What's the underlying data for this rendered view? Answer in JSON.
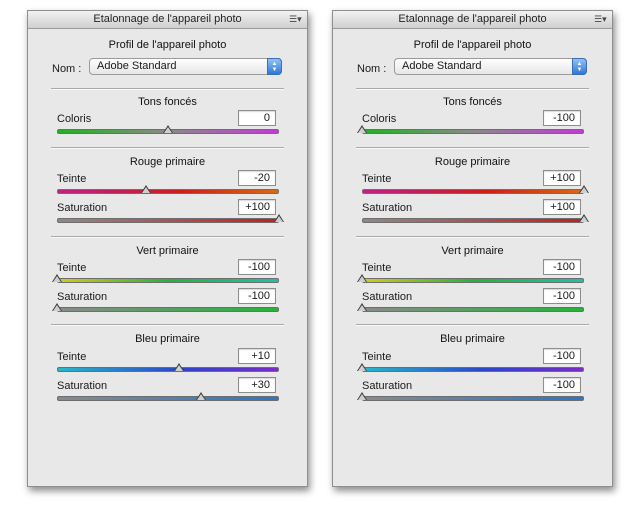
{
  "panels": [
    {
      "title": "Etalonnage de l'appareil photo",
      "profile_heading": "Profil de l'appareil photo",
      "nom_label": "Nom :",
      "profile_value": "Adobe Standard",
      "shadows": {
        "heading": "Tons foncés",
        "coloris_label": "Coloris",
        "coloris_value": "0"
      },
      "red": {
        "heading": "Rouge primaire",
        "teinte_label": "Teinte",
        "teinte_value": "-20",
        "saturation_label": "Saturation",
        "saturation_value": "+100"
      },
      "green": {
        "heading": "Vert primaire",
        "teinte_label": "Teinte",
        "teinte_value": "-100",
        "saturation_label": "Saturation",
        "saturation_value": "-100"
      },
      "blue": {
        "heading": "Bleu primaire",
        "teinte_label": "Teinte",
        "teinte_value": "+10",
        "saturation_label": "Saturation",
        "saturation_value": "+30"
      }
    },
    {
      "title": "Etalonnage de l'appareil photo",
      "profile_heading": "Profil de l'appareil photo",
      "nom_label": "Nom :",
      "profile_value": "Adobe Standard",
      "shadows": {
        "heading": "Tons foncés",
        "coloris_label": "Coloris",
        "coloris_value": "-100"
      },
      "red": {
        "heading": "Rouge primaire",
        "teinte_label": "Teinte",
        "teinte_value": "+100",
        "saturation_label": "Saturation",
        "saturation_value": "+100"
      },
      "green": {
        "heading": "Vert primaire",
        "teinte_label": "Teinte",
        "teinte_value": "-100",
        "saturation_label": "Saturation",
        "saturation_value": "-100"
      },
      "blue": {
        "heading": "Bleu primaire",
        "teinte_label": "Teinte",
        "teinte_value": "-100",
        "saturation_label": "Saturation",
        "saturation_value": "-100"
      }
    }
  ],
  "icons": {
    "panel_menu": "panel-menu-icon",
    "dropdown_arrows": "dropdown-arrows-icon",
    "slider_thumb": "slider-thumb-icon"
  },
  "colors": {
    "panel_bg": "#e8e8e8",
    "accent_dropdown": "#2f78d6"
  }
}
